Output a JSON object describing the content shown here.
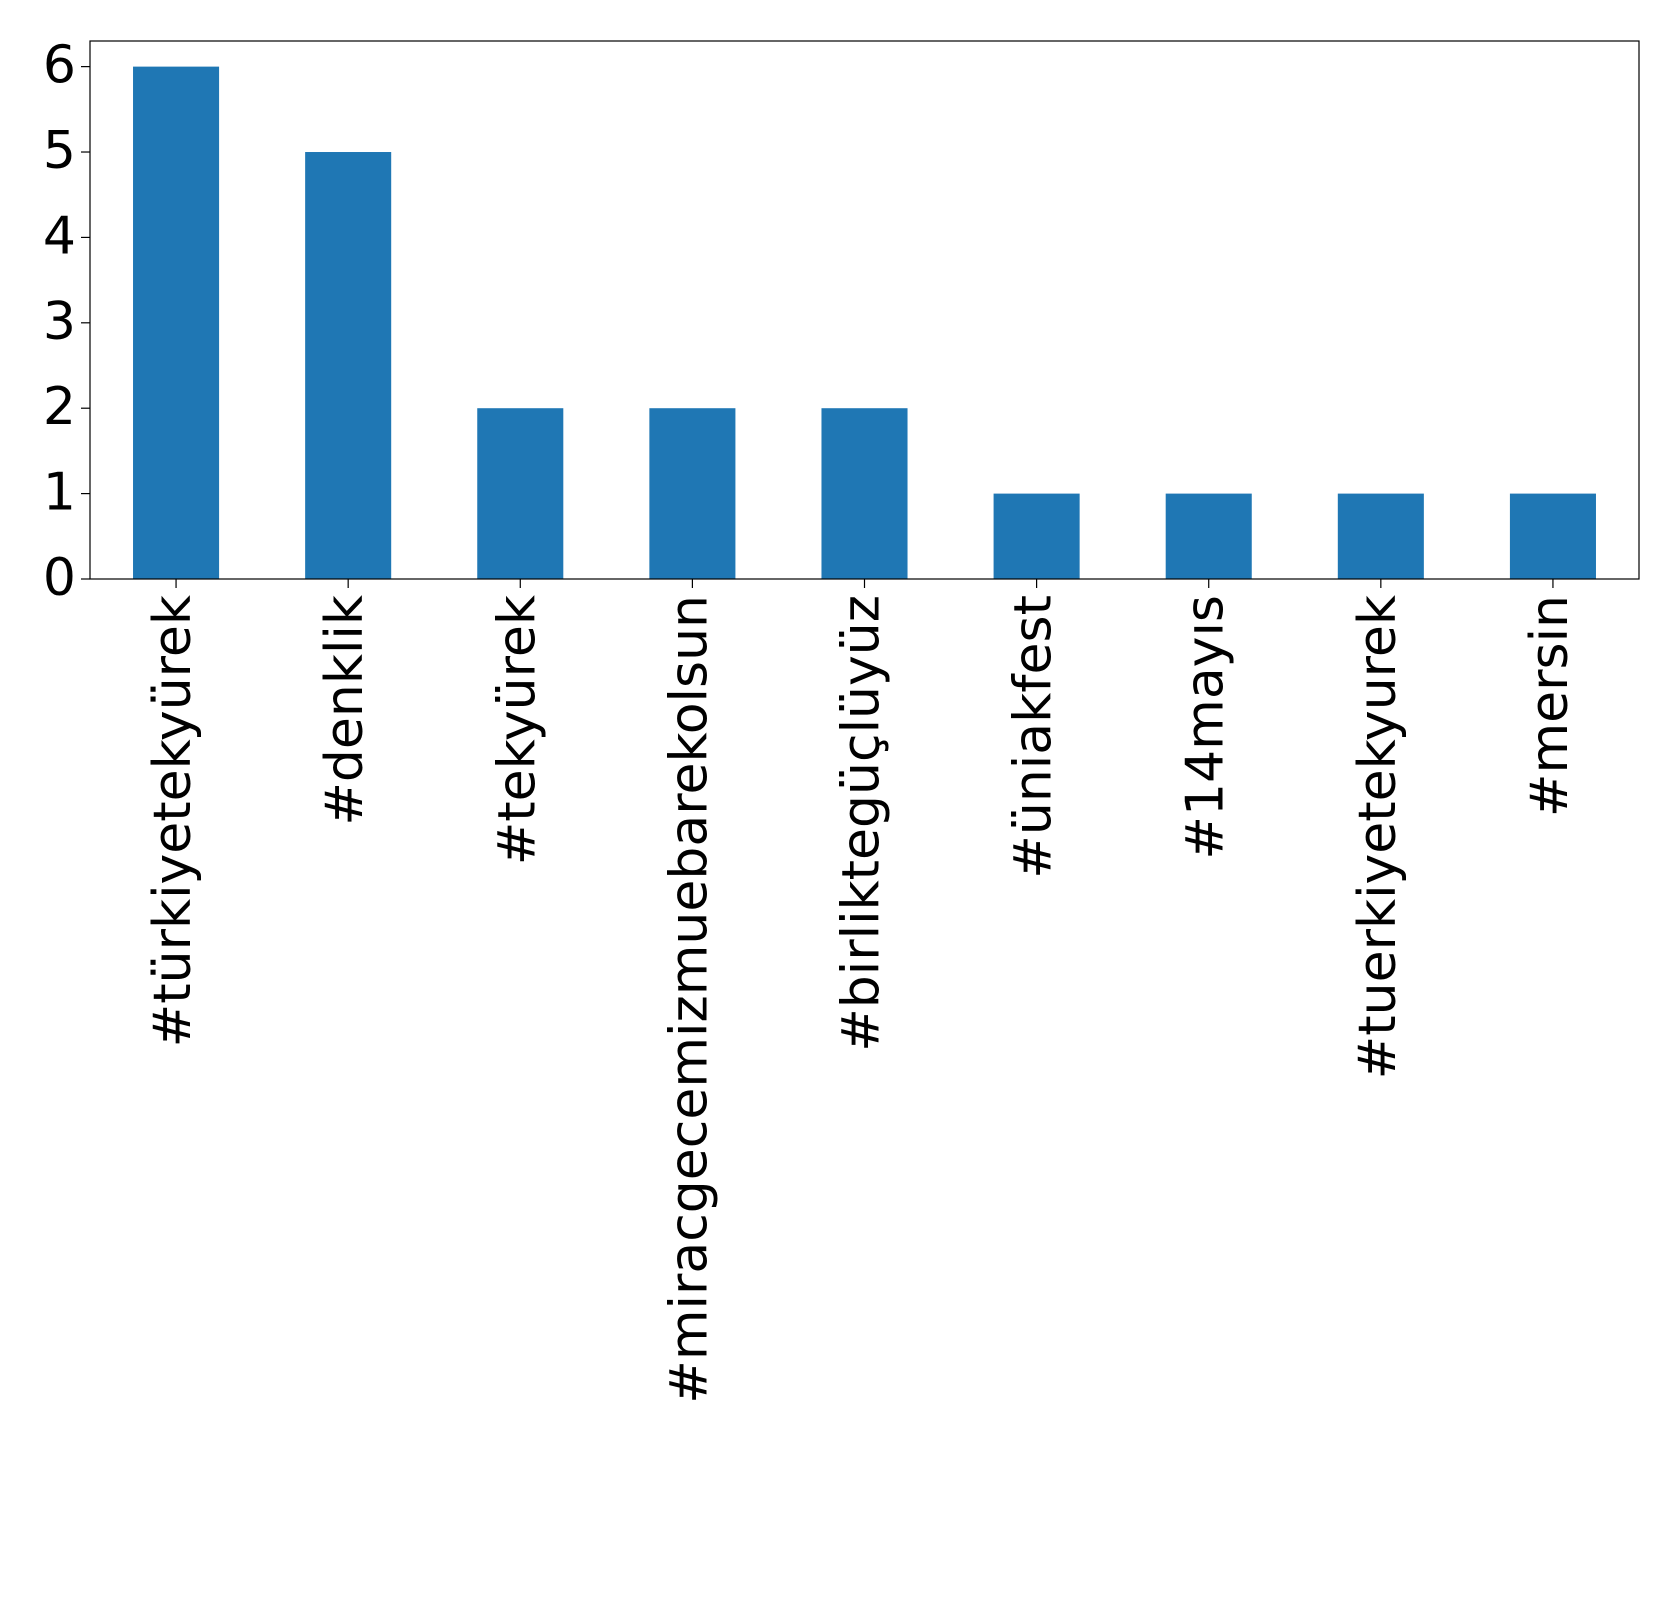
{
  "chart_data": {
    "type": "bar",
    "categories": [
      "#türkiyetekyürek",
      "#denklik",
      "#tekyürek",
      "#miracgecemizmuebarekolsun",
      "#birliktegüçlüyüz",
      "#üniakfest",
      "#14mayıs",
      "#tuerkiyetekyurek",
      "#mersin"
    ],
    "values": [
      6,
      5,
      2,
      2,
      2,
      1,
      1,
      1,
      1
    ],
    "color": "#1f77b4",
    "ylim": [
      0,
      6.3
    ],
    "yticks": [
      0,
      1,
      2,
      3,
      4,
      5,
      6
    ],
    "grid": false
  }
}
